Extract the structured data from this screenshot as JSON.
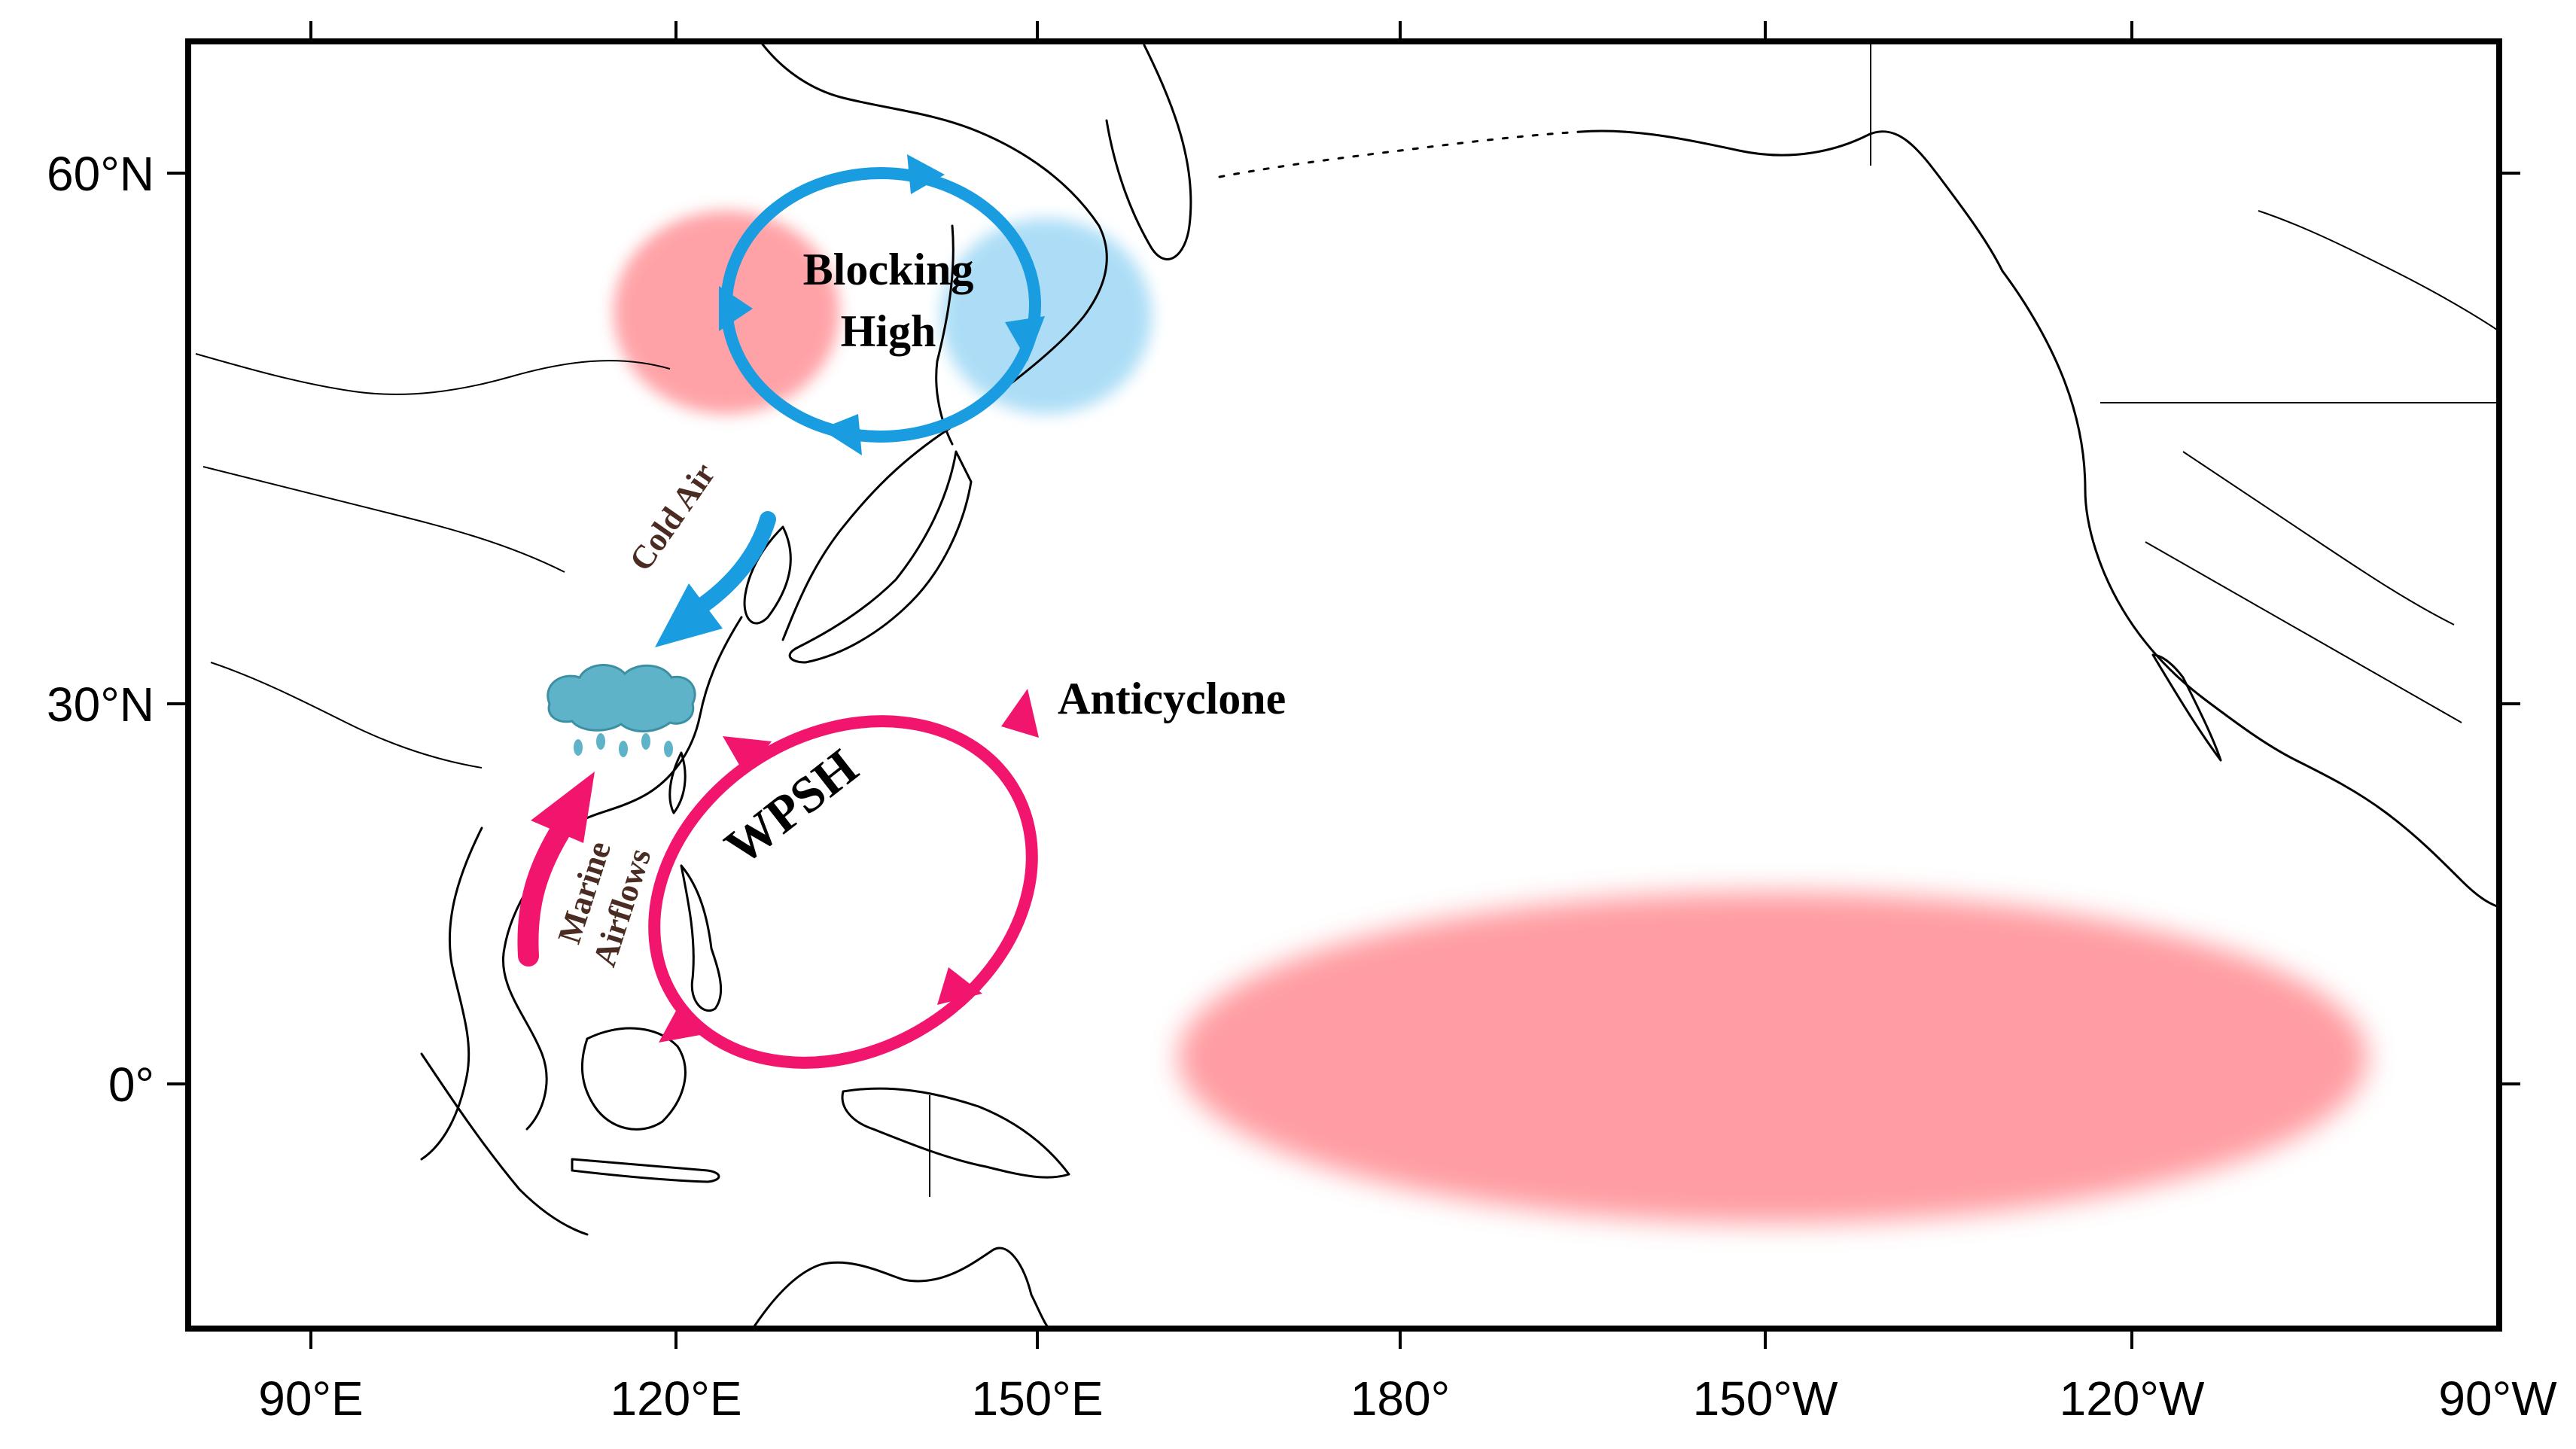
{
  "map": {
    "longitude_ticks": [
      "90°E",
      "120°E",
      "150°E",
      "180°",
      "150°W",
      "120°W",
      "90°W"
    ],
    "latitude_ticks": [
      "60°N",
      "30°N",
      "0°"
    ],
    "lon_range": [
      "80°E",
      "90°W"
    ],
    "lat_range": [
      "13°S",
      "67°N"
    ],
    "grid": false
  },
  "labels": {
    "blocking_line1": "Blocking",
    "blocking_line2": "High",
    "cold_air": "Cold Air",
    "anticyclone": "Anticyclone",
    "wpsh": "WPSH",
    "marine_line1": "Marine",
    "marine_line2": "Airflows"
  },
  "colors": {
    "blocking_circulation": "#1a9de0",
    "cold_air_arrow": "#1a9de0",
    "anticyclone_circulation": "#f2156e",
    "marine_arrow": "#f2156e",
    "warm_anomaly": "#ff8c92",
    "cold_anomaly": "#9fd8f5",
    "rain_cloud": "#5fb3c8"
  },
  "icons": {
    "rain_cloud": "rain-cloud-icon"
  }
}
